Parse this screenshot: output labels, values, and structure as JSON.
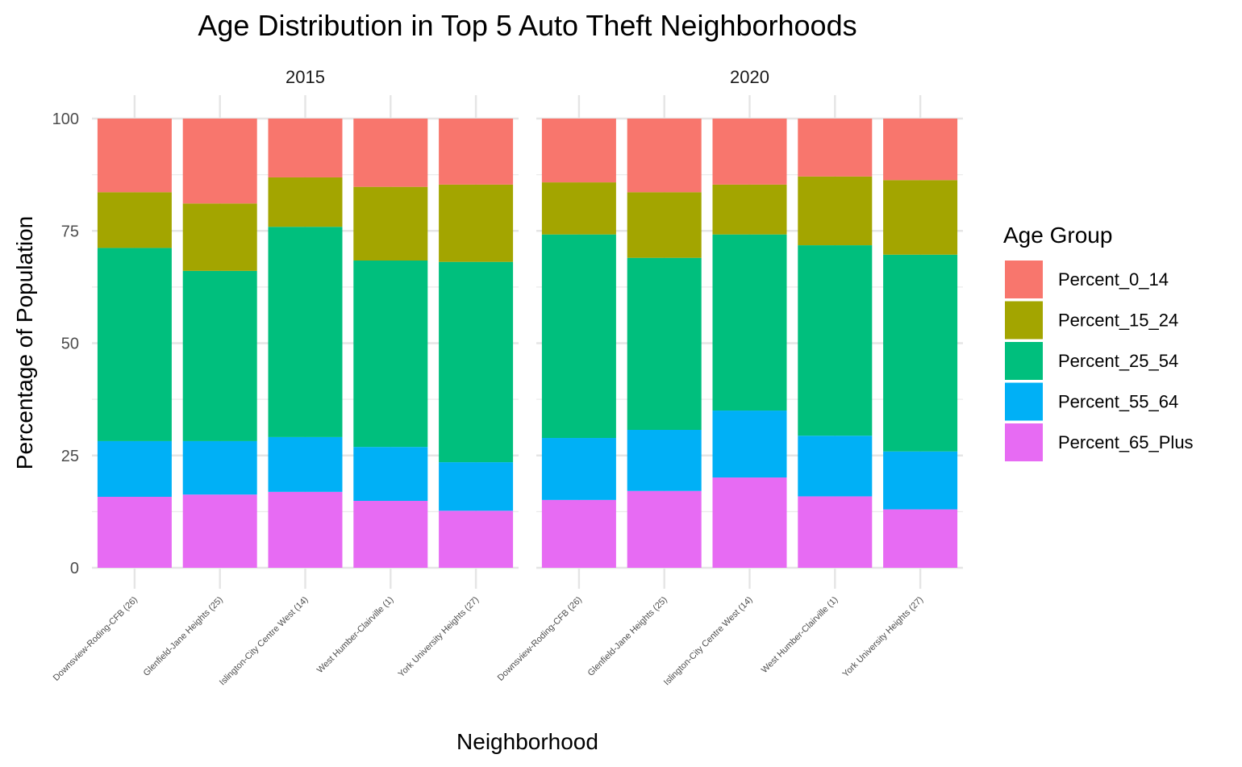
{
  "chart_data": {
    "type": "bar",
    "stacked": true,
    "title": "Age Distribution in Top 5 Auto Theft Neighborhoods",
    "xlabel": "Neighborhood",
    "ylabel": "Percentage of Population",
    "ylim": [
      0,
      100
    ],
    "yticks": [
      "0",
      "25",
      "50",
      "75",
      "100"
    ],
    "grid": true,
    "legend": {
      "title": "Age Group",
      "position": "right",
      "entries": [
        "Percent_0_14",
        "Percent_15_24",
        "Percent_25_54",
        "Percent_55_64",
        "Percent_65_Plus"
      ]
    },
    "colors": {
      "Percent_0_14": "#F8766D",
      "Percent_15_24": "#A3A500",
      "Percent_25_54": "#00BF7D",
      "Percent_55_64": "#00B0F6",
      "Percent_65_Plus": "#E76BF3"
    },
    "categories": [
      "Downsview-Roding-CFB (26)",
      "Glenfield-Jane Heights (25)",
      "Islington-City Centre West (14)",
      "West Humber-Clairville (1)",
      "York University Heights (27)"
    ],
    "panels": [
      {
        "label": "2015",
        "series": [
          {
            "name": "Percent_65_Plus",
            "values": [
              15.8,
              16.3,
              16.9,
              14.9,
              12.7
            ]
          },
          {
            "name": "Percent_55_64",
            "values": [
              12.4,
              11.9,
              12.2,
              12.0,
              10.8
            ]
          },
          {
            "name": "Percent_25_54",
            "values": [
              43.0,
              37.9,
              46.8,
              41.5,
              44.6
            ]
          },
          {
            "name": "Percent_15_24",
            "values": [
              12.4,
              15.0,
              11.0,
              16.4,
              17.2
            ]
          },
          {
            "name": "Percent_0_14",
            "values": [
              16.4,
              18.9,
              13.1,
              15.2,
              14.7
            ]
          }
        ]
      },
      {
        "label": "2020",
        "series": [
          {
            "name": "Percent_65_Plus",
            "values": [
              15.1,
              17.1,
              20.1,
              15.9,
              13.0
            ]
          },
          {
            "name": "Percent_55_64",
            "values": [
              13.8,
              13.6,
              14.9,
              13.5,
              12.9
            ]
          },
          {
            "name": "Percent_25_54",
            "values": [
              45.3,
              38.3,
              39.2,
              42.4,
              43.8
            ]
          },
          {
            "name": "Percent_15_24",
            "values": [
              11.6,
              14.6,
              11.1,
              15.3,
              16.6
            ]
          },
          {
            "name": "Percent_0_14",
            "values": [
              14.2,
              16.4,
              14.7,
              12.9,
              13.7
            ]
          }
        ]
      }
    ]
  }
}
